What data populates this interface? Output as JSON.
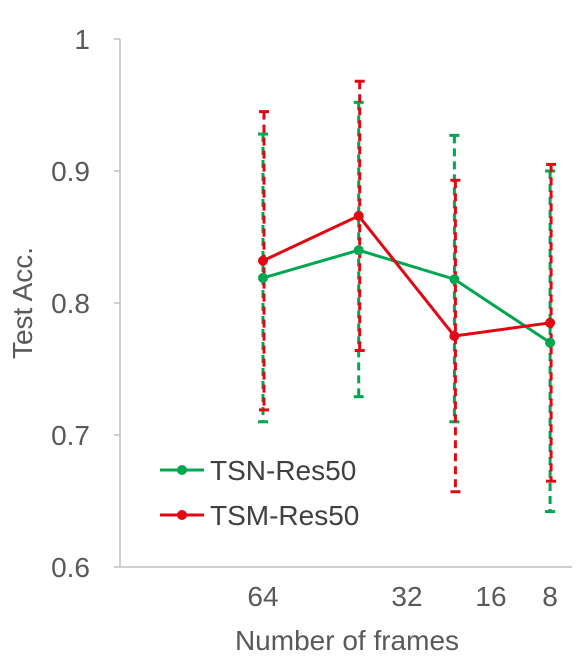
{
  "chart_data": {
    "type": "line",
    "title": "",
    "xlabel": "Number of frames",
    "ylabel": "Test Acc.",
    "ylim": [
      0.6,
      1.0
    ],
    "yticks": [
      "0.6",
      "0.7",
      "0.8",
      "0.9",
      "1"
    ],
    "categories": [
      "64",
      "32",
      "16",
      "8"
    ],
    "x_positions": [
      64,
      32,
      16,
      8
    ],
    "x_scale": "log2-reversed",
    "grid": false,
    "legend_position": "bottom-left",
    "series": [
      {
        "name": "TSN-Res50",
        "color": "#00a650",
        "values": [
          0.819,
          0.84,
          0.818,
          0.77
        ],
        "error_high": [
          0.928,
          0.952,
          0.927,
          0.9
        ],
        "error_low": [
          0.71,
          0.729,
          0.71,
          0.642
        ]
      },
      {
        "name": "TSM-Res50",
        "color": "#e30613",
        "values": [
          0.832,
          0.866,
          0.775,
          0.785
        ],
        "error_high": [
          0.945,
          0.968,
          0.893,
          0.905
        ],
        "error_low": [
          0.719,
          0.764,
          0.657,
          0.665
        ]
      }
    ]
  }
}
